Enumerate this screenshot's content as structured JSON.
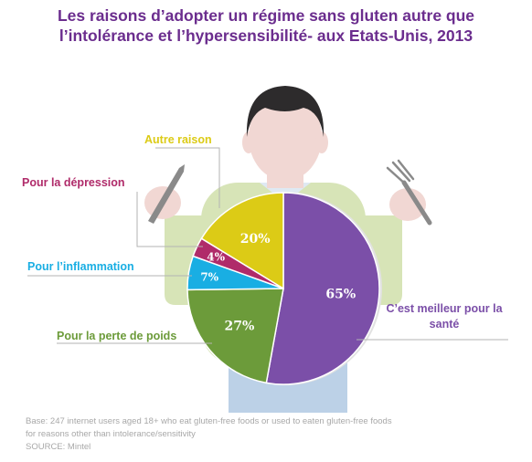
{
  "title": {
    "line1": "Les raisons d’adopter un régime sans gluten autre que",
    "line2": "l’intolérance et l’hypersensibilité- aux Etats-Unis, 2013"
  },
  "colors": {
    "title": "#6b2d8e",
    "body": "#d7e4b7",
    "skin": "#f1d7d3",
    "hair": "#2d2b2c",
    "pants": "#bcd1e7",
    "note": "#a8a8a8"
  },
  "chart_data": {
    "type": "pie",
    "title": "Les raisons d’adopter un régime sans gluten autre que l’intolérance et l’hypersensibilité- aux Etats-Unis, 2013",
    "slices": [
      {
        "label": "C’est meilleur pour la santé",
        "value": 65,
        "value_label": "65%",
        "color": "#7b4fa8"
      },
      {
        "label": "Pour la perte de poids",
        "value": 27,
        "value_label": "27%",
        "color": "#6c9b3a"
      },
      {
        "label": "Pour l’inflammation",
        "value": 7,
        "value_label": "7%",
        "color": "#19aee3"
      },
      {
        "label": "Pour la dépression",
        "value": 4,
        "value_label": "4%",
        "color": "#b02b6a"
      },
      {
        "label": "Autre raison",
        "value": 20,
        "value_label": "20%",
        "color": "#dccb16"
      }
    ]
  },
  "labels": {
    "sante_line1": "C’est meilleur pour la",
    "sante_line2": "santé",
    "perte": "Pour la perte de poids",
    "inflammation": "Pour l’inflammation",
    "depression": "Pour la dépression",
    "autre": "Autre raison"
  },
  "value_labels": {
    "sante": "65%",
    "perte": "27%",
    "inflammation": "7%",
    "depression": "4%",
    "autre": "20%"
  },
  "note": {
    "line1": "Base: 247 internet users aged 18+ who eat gluten-free foods or used to eaten gluten-free foods",
    "line2": "for reasons other than intolerance/sensitivity",
    "line3": "SOURCE: Mintel"
  }
}
